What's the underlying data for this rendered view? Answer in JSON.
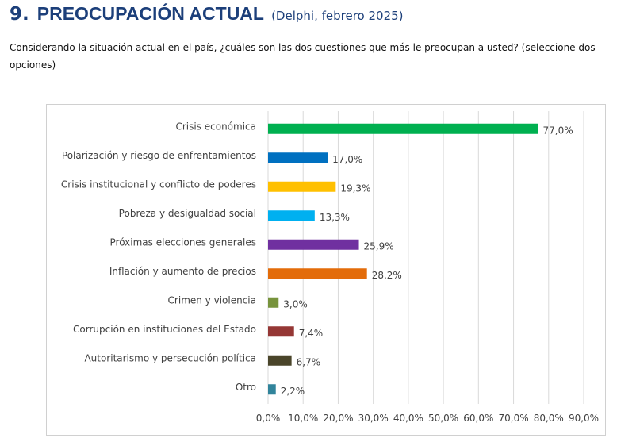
{
  "header": {
    "number": "9.",
    "title": "PREOCUPACIÓN ACTUAL",
    "subtitle": "(Delphi, febrero 2025)"
  },
  "question": "Considerando la situación actual en el país, ¿cuáles son las dos cuestiones que más le preocupan a usted? (seleccione dos opciones)",
  "chart_data": {
    "type": "bar",
    "orientation": "horizontal",
    "categories": [
      "Crisis económica",
      "Polarización y riesgo de enfrentamientos",
      "Crisis institucional y conflicto de poderes",
      "Pobreza y desigualdad social",
      "Próximas elecciones generales",
      "Inflación y aumento de precios",
      "Crimen y violencia",
      "Corrupción en instituciones del Estado",
      "Autoritarismo y persecución política",
      "Otro"
    ],
    "values": [
      77.0,
      17.0,
      19.3,
      13.3,
      25.9,
      28.2,
      3.0,
      7.4,
      6.7,
      2.2
    ],
    "value_labels": [
      "77,0%",
      "17,0%",
      "19,3%",
      "13,3%",
      "25,9%",
      "28,2%",
      "3,0%",
      "7,4%",
      "6,7%",
      "2,2%"
    ],
    "colors": [
      "#00b050",
      "#0070c0",
      "#ffc000",
      "#00b0f0",
      "#7030a0",
      "#e36c0a",
      "#77933c",
      "#953735",
      "#4a452a",
      "#31849b"
    ],
    "xlim": [
      0,
      90
    ],
    "xticks": [
      0,
      10,
      20,
      30,
      40,
      50,
      60,
      70,
      80,
      90
    ],
    "xtick_labels": [
      "0,0%",
      "10,0%",
      "20,0%",
      "30,0%",
      "40,0%",
      "50,0%",
      "60,0%",
      "70,0%",
      "80,0%",
      "90,0%"
    ],
    "grid": true,
    "grid_color": "#d9d9d9"
  }
}
